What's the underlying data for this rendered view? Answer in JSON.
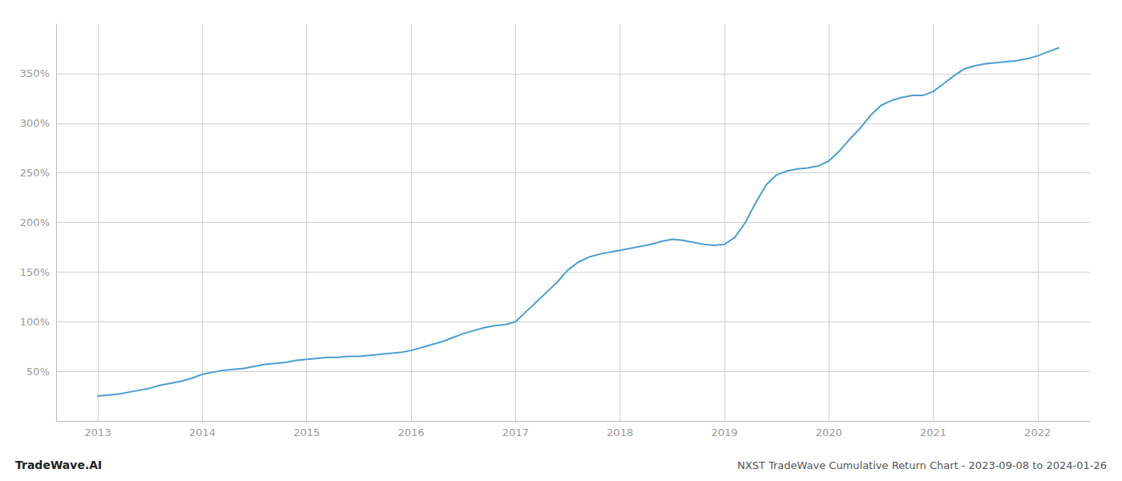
{
  "chart_data": {
    "type": "line",
    "title": "NXST TradeWave Cumulative Return Chart - 2023-09-08 to 2024-01-26",
    "annotations": [
      "TradeWave.AI"
    ],
    "color": "#4a9fd4",
    "x": [
      2013.0,
      2013.1,
      2013.2,
      2013.3,
      2013.4,
      2013.5,
      2013.6,
      2013.7,
      2013.8,
      2013.9,
      2014.0,
      2014.1,
      2014.2,
      2014.3,
      2014.4,
      2014.5,
      2014.6,
      2014.7,
      2014.8,
      2014.9,
      2015.0,
      2015.1,
      2015.2,
      2015.3,
      2015.4,
      2015.5,
      2015.6,
      2015.7,
      2015.8,
      2015.9,
      2016.0,
      2016.1,
      2016.2,
      2016.3,
      2016.4,
      2016.5,
      2016.6,
      2016.7,
      2016.8,
      2016.9,
      2017.0,
      2017.1,
      2017.2,
      2017.3,
      2017.4,
      2017.5,
      2017.6,
      2017.7,
      2017.8,
      2017.9,
      2018.0,
      2018.1,
      2018.2,
      2018.3,
      2018.4,
      2018.5,
      2018.6,
      2018.7,
      2018.8,
      2018.9,
      2019.0,
      2019.1,
      2019.2,
      2019.3,
      2019.4,
      2019.5,
      2019.6,
      2019.7,
      2019.8,
      2019.9,
      2020.0,
      2020.1,
      2020.2,
      2020.3,
      2020.4,
      2020.5,
      2020.6,
      2020.7,
      2020.8,
      2020.9,
      2021.0,
      2021.1,
      2021.2,
      2021.3,
      2021.4,
      2021.5,
      2021.6,
      2021.7,
      2021.8,
      2021.9,
      2022.0,
      2022.1,
      2022.2
    ],
    "values": [
      25,
      26,
      27,
      29,
      31,
      33,
      36,
      38,
      40,
      43,
      47,
      49,
      51,
      52,
      53,
      55,
      57,
      58,
      59,
      61,
      62,
      63,
      64,
      64,
      65,
      65,
      66,
      67,
      68,
      69,
      71,
      74,
      77,
      80,
      84,
      88,
      91,
      94,
      96,
      97,
      100,
      110,
      120,
      130,
      140,
      152,
      160,
      165,
      168,
      170,
      172,
      174,
      176,
      178,
      181,
      183,
      182,
      180,
      178,
      177,
      178,
      185,
      200,
      220,
      238,
      248,
      252,
      254,
      255,
      257,
      262,
      272,
      284,
      295,
      308,
      318,
      323,
      326,
      328,
      328,
      332,
      340,
      348,
      355,
      358,
      360,
      361,
      362,
      363,
      365,
      368,
      372,
      376
    ],
    "xlim": [
      2012.6,
      2022.5
    ],
    "xticks": [
      2013,
      2014,
      2015,
      2016,
      2017,
      2018,
      2019,
      2020,
      2021,
      2022
    ],
    "ylim": [
      0,
      400
    ],
    "yticks": [
      {
        "value": 50,
        "label": "50%"
      },
      {
        "value": 100,
        "label": "100%"
      },
      {
        "value": 150,
        "label": "150%"
      },
      {
        "value": 200,
        "label": "200%"
      },
      {
        "value": 250,
        "label": "250%"
      },
      {
        "value": 300,
        "label": "300%"
      },
      {
        "value": 350,
        "label": "350%"
      }
    ],
    "grid": true
  }
}
